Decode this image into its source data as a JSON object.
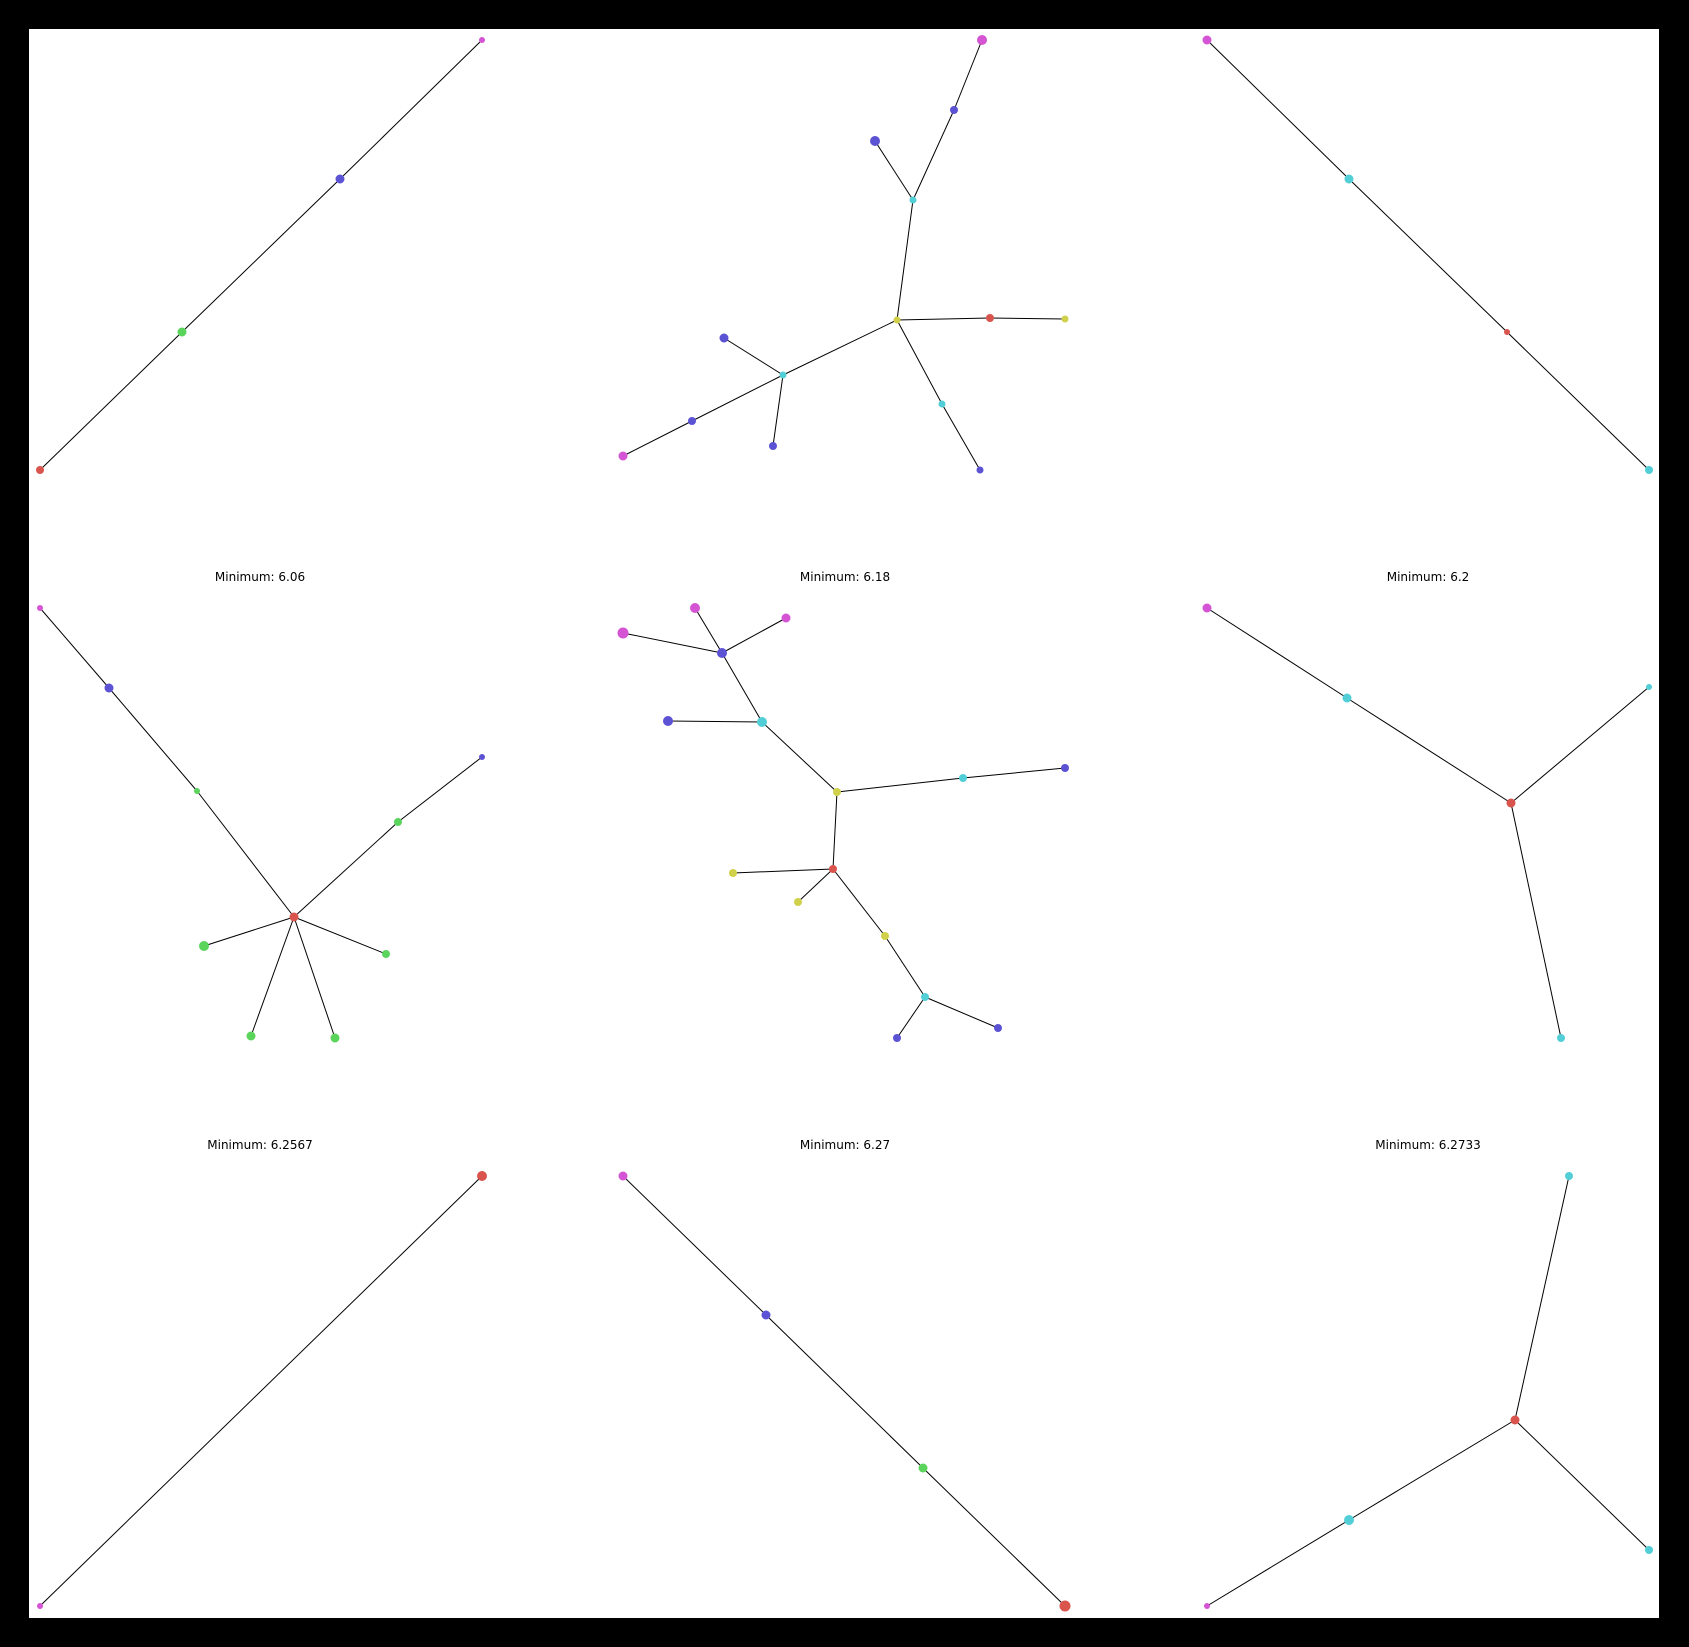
{
  "figure": {
    "background": "#000000",
    "panel_background": "#ffffff",
    "edge_color": "#000000"
  },
  "palette": {
    "red": "#d9544d",
    "yellow": "#d0d04a",
    "green": "#5bd45b",
    "cyan": "#52cfd6",
    "blue": "#5c52d4",
    "magenta": "#d454d4"
  },
  "panels": [
    {
      "title": "",
      "nodes": [
        {
          "id": "a",
          "color": "magenta"
        },
        {
          "id": "b",
          "color": "blue"
        },
        {
          "id": "c",
          "color": "green"
        },
        {
          "id": "d",
          "color": "red"
        }
      ],
      "edges": [
        [
          "a",
          "b"
        ],
        [
          "b",
          "c"
        ],
        [
          "c",
          "d"
        ]
      ]
    },
    {
      "title": "",
      "nodes": [
        {
          "id": "m1",
          "color": "magenta"
        },
        {
          "id": "b1",
          "color": "blue"
        },
        {
          "id": "b2",
          "color": "blue"
        },
        {
          "id": "c1",
          "color": "cyan"
        },
        {
          "id": "y1",
          "color": "yellow"
        },
        {
          "id": "r1",
          "color": "red"
        },
        {
          "id": "y2",
          "color": "yellow"
        },
        {
          "id": "c2",
          "color": "cyan"
        },
        {
          "id": "b3",
          "color": "blue"
        },
        {
          "id": "c3",
          "color": "cyan"
        },
        {
          "id": "b4",
          "color": "blue"
        },
        {
          "id": "b5",
          "color": "blue"
        },
        {
          "id": "m2",
          "color": "magenta"
        },
        {
          "id": "b6",
          "color": "blue"
        }
      ],
      "edges": [
        [
          "m1",
          "b1"
        ],
        [
          "b1",
          "c1"
        ],
        [
          "b2",
          "c1"
        ],
        [
          "c1",
          "y1"
        ],
        [
          "y1",
          "r1"
        ],
        [
          "r1",
          "y2"
        ],
        [
          "y1",
          "c2"
        ],
        [
          "c2",
          "b3"
        ],
        [
          "y1",
          "c3"
        ],
        [
          "c3",
          "b4"
        ],
        [
          "c3",
          "b5"
        ],
        [
          "b5",
          "m2"
        ],
        [
          "c3",
          "b6"
        ]
      ]
    },
    {
      "title": "",
      "nodes": [
        {
          "id": "a",
          "color": "magenta"
        },
        {
          "id": "b",
          "color": "cyan"
        },
        {
          "id": "c",
          "color": "red"
        },
        {
          "id": "d",
          "color": "cyan"
        }
      ],
      "edges": [
        [
          "a",
          "b"
        ],
        [
          "b",
          "c"
        ],
        [
          "c",
          "d"
        ]
      ]
    },
    {
      "title": "Minimum: 6.06",
      "nodes": [
        {
          "id": "m",
          "color": "magenta"
        },
        {
          "id": "b1",
          "color": "blue"
        },
        {
          "id": "g1",
          "color": "green"
        },
        {
          "id": "r",
          "color": "red"
        },
        {
          "id": "b2",
          "color": "blue"
        },
        {
          "id": "g2",
          "color": "green"
        },
        {
          "id": "g3",
          "color": "green"
        },
        {
          "id": "g4",
          "color": "green"
        },
        {
          "id": "g5",
          "color": "green"
        },
        {
          "id": "g6",
          "color": "green"
        }
      ],
      "edges": [
        [
          "m",
          "b1"
        ],
        [
          "b1",
          "g1"
        ],
        [
          "g1",
          "r"
        ],
        [
          "r",
          "g2"
        ],
        [
          "g2",
          "b2"
        ],
        [
          "r",
          "g3"
        ],
        [
          "r",
          "g4"
        ],
        [
          "r",
          "g5"
        ],
        [
          "r",
          "g6"
        ]
      ]
    },
    {
      "title": "Minimum: 6.18",
      "nodes": [
        {
          "id": "m1",
          "color": "magenta"
        },
        {
          "id": "m2",
          "color": "magenta"
        },
        {
          "id": "m3",
          "color": "magenta"
        },
        {
          "id": "b1",
          "color": "blue"
        },
        {
          "id": "b2",
          "color": "blue"
        },
        {
          "id": "c1",
          "color": "cyan"
        },
        {
          "id": "y1",
          "color": "yellow"
        },
        {
          "id": "c2",
          "color": "cyan"
        },
        {
          "id": "b3",
          "color": "blue"
        },
        {
          "id": "r1",
          "color": "red"
        },
        {
          "id": "y2",
          "color": "yellow"
        },
        {
          "id": "y3",
          "color": "yellow"
        },
        {
          "id": "y4",
          "color": "yellow"
        },
        {
          "id": "c3",
          "color": "cyan"
        },
        {
          "id": "b4",
          "color": "blue"
        },
        {
          "id": "b5",
          "color": "blue"
        }
      ],
      "edges": [
        [
          "m1",
          "b1"
        ],
        [
          "m2",
          "b1"
        ],
        [
          "m3",
          "b1"
        ],
        [
          "b1",
          "c1"
        ],
        [
          "b2",
          "c1"
        ],
        [
          "c1",
          "y1"
        ],
        [
          "y1",
          "c2"
        ],
        [
          "c2",
          "b3"
        ],
        [
          "y1",
          "r1"
        ],
        [
          "r1",
          "y2"
        ],
        [
          "r1",
          "y3"
        ],
        [
          "r1",
          "y4"
        ],
        [
          "y4",
          "c3"
        ],
        [
          "c3",
          "b4"
        ],
        [
          "c3",
          "b5"
        ]
      ]
    },
    {
      "title": "Minimum: 6.2",
      "nodes": [
        {
          "id": "a",
          "color": "magenta"
        },
        {
          "id": "b",
          "color": "cyan"
        },
        {
          "id": "r",
          "color": "red"
        },
        {
          "id": "c",
          "color": "cyan"
        },
        {
          "id": "d",
          "color": "cyan"
        }
      ],
      "edges": [
        [
          "a",
          "b"
        ],
        [
          "b",
          "r"
        ],
        [
          "r",
          "c"
        ],
        [
          "r",
          "d"
        ]
      ]
    },
    {
      "title": "Minimum: 6.2567",
      "nodes": [
        {
          "id": "a",
          "color": "red"
        },
        {
          "id": "b",
          "color": "magenta"
        }
      ],
      "edges": [
        [
          "a",
          "b"
        ]
      ]
    },
    {
      "title": "Minimum: 6.27",
      "nodes": [
        {
          "id": "a",
          "color": "magenta"
        },
        {
          "id": "b",
          "color": "blue"
        },
        {
          "id": "c",
          "color": "green"
        },
        {
          "id": "d",
          "color": "red"
        }
      ],
      "edges": [
        [
          "a",
          "b"
        ],
        [
          "b",
          "c"
        ],
        [
          "c",
          "d"
        ]
      ]
    },
    {
      "title": "Minimum: 6.2733",
      "nodes": [
        {
          "id": "a",
          "color": "cyan"
        },
        {
          "id": "r",
          "color": "red"
        },
        {
          "id": "b",
          "color": "cyan"
        },
        {
          "id": "c",
          "color": "magenta"
        },
        {
          "id": "d",
          "color": "cyan"
        }
      ],
      "edges": [
        [
          "a",
          "r"
        ],
        [
          "r",
          "b"
        ],
        [
          "b",
          "c"
        ],
        [
          "r",
          "d"
        ]
      ]
    }
  ]
}
